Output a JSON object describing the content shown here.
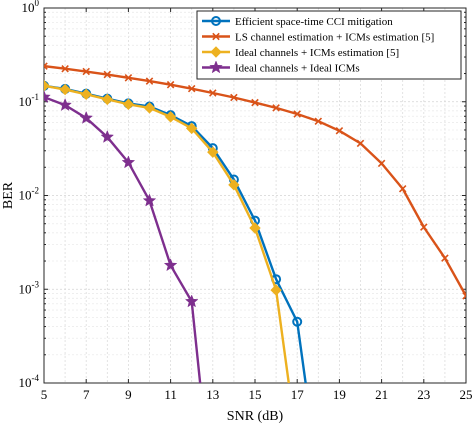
{
  "chart_data": {
    "type": "line",
    "xlabel": "SNR (dB)",
    "ylabel": "BER",
    "xlim": [
      5,
      25
    ],
    "ylim": [
      0.0001,
      1
    ],
    "yscale": "log",
    "grid": true,
    "legend_position": "top-right",
    "x_ticks": [
      "5",
      "7",
      "9",
      "11",
      "13",
      "15",
      "17",
      "19",
      "21",
      "23",
      "25"
    ],
    "y_ticks": [
      {
        "base": "10",
        "exp": "0"
      },
      {
        "base": "10",
        "exp": "-1"
      },
      {
        "base": "10",
        "exp": "-2"
      },
      {
        "base": "10",
        "exp": "-3"
      },
      {
        "base": "10",
        "exp": "-4"
      }
    ],
    "series": [
      {
        "name": "Efficient space-time CCI mitigation",
        "color": "#0072BD",
        "marker": "circle",
        "x": [
          5,
          6,
          7,
          8,
          9,
          10,
          11,
          12,
          13,
          14,
          15,
          16,
          17,
          17.4
        ],
        "y": [
          0.148,
          0.137,
          0.122,
          0.108,
          0.096,
          0.089,
          0.072,
          0.055,
          0.032,
          0.0148,
          0.0054,
          0.00128,
          0.00045,
          0.0001
        ]
      },
      {
        "name": "LS channel estimation + ICMs estimation [5]",
        "color": "#D95319",
        "marker": "x",
        "x": [
          5,
          6,
          7,
          8,
          9,
          10,
          11,
          12,
          13,
          14,
          15,
          16,
          17,
          18,
          19,
          20,
          21,
          22,
          23,
          24,
          25
        ],
        "y": [
          0.24,
          0.225,
          0.21,
          0.195,
          0.18,
          0.166,
          0.152,
          0.138,
          0.124,
          0.111,
          0.098,
          0.086,
          0.074,
          0.062,
          0.049,
          0.036,
          0.022,
          0.0118,
          0.0046,
          0.00215,
          0.00085
        ]
      },
      {
        "name": "Ideal channels + ICMs estimation [5]",
        "color": "#EDB120",
        "marker": "diamond",
        "x": [
          5,
          6,
          7,
          8,
          9,
          10,
          11,
          12,
          13,
          14,
          15,
          16,
          16.6
        ],
        "y": [
          0.148,
          0.135,
          0.12,
          0.106,
          0.094,
          0.086,
          0.069,
          0.052,
          0.029,
          0.013,
          0.0045,
          0.00098,
          0.0001
        ]
      },
      {
        "name": "Ideal channels + Ideal ICMs",
        "color": "#7E2F8E",
        "marker": "star",
        "x": [
          5,
          6,
          7,
          8,
          9,
          10,
          11,
          12,
          12.4
        ],
        "y": [
          0.112,
          0.092,
          0.067,
          0.042,
          0.0225,
          0.0088,
          0.0018,
          0.00074,
          0.0001
        ]
      }
    ]
  }
}
